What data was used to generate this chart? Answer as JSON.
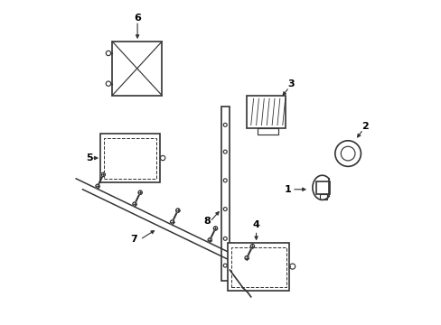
{
  "background_color": "#ffffff",
  "line_color": "#333333",
  "label_color": "#000000"
}
